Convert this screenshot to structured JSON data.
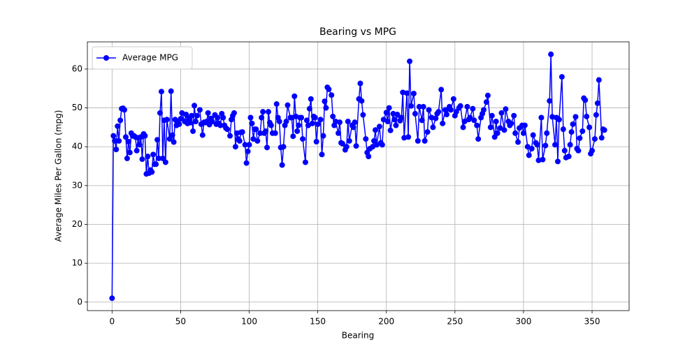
{
  "chart_data": {
    "type": "line",
    "title": "Bearing vs MPG",
    "x_label": "Bearing",
    "y_label": "Average Miles Per Gallon (mpg)",
    "x": [
      0,
      1,
      2,
      3,
      4,
      5,
      6,
      7,
      8,
      9,
      10,
      11,
      12,
      13,
      14,
      15,
      16,
      17,
      18,
      19,
      20,
      21,
      22,
      23,
      24,
      25,
      26,
      27,
      28,
      29,
      30,
      31,
      32,
      33,
      34,
      35,
      36,
      37,
      38,
      39,
      40,
      42,
      43,
      44,
      45,
      46,
      47,
      48,
      49,
      50,
      51,
      53,
      54,
      55,
      56,
      57,
      58,
      59,
      60,
      61,
      62,
      64,
      65,
      66,
      67,
      68,
      69,
      70,
      71,
      72,
      73,
      75,
      76,
      77,
      78,
      79,
      80,
      81,
      82,
      83,
      84,
      86,
      87,
      88,
      89,
      90,
      91,
      92,
      93,
      94,
      95,
      97,
      98,
      99,
      100,
      101,
      102,
      103,
      104,
      105,
      106,
      108,
      109,
      110,
      111,
      112,
      113,
      114,
      115,
      116,
      117,
      119,
      120,
      121,
      122,
      123,
      124,
      125,
      126,
      127,
      128,
      130,
      131,
      132,
      133,
      134,
      135,
      136,
      137,
      138,
      139,
      141,
      142,
      143,
      144,
      145,
      146,
      147,
      148,
      149,
      150,
      152,
      153,
      154,
      155,
      156,
      157,
      158,
      160,
      161,
      162,
      163,
      165,
      166,
      167,
      168,
      170,
      171,
      172,
      173,
      175,
      176,
      177,
      178,
      180,
      181,
      182,
      183,
      185,
      186,
      187,
      188,
      190,
      191,
      192,
      193,
      195,
      196,
      197,
      198,
      200,
      201,
      202,
      203,
      205,
      206,
      207,
      208,
      210,
      211,
      212,
      213,
      215,
      216,
      217,
      218,
      220,
      221,
      223,
      224,
      226,
      227,
      228,
      230,
      231,
      233,
      234,
      236,
      237,
      238,
      240,
      241,
      243,
      244,
      246,
      247,
      249,
      250,
      251,
      253,
      254,
      256,
      257,
      259,
      260,
      261,
      263,
      264,
      266,
      267,
      269,
      270,
      271,
      273,
      274,
      276,
      277,
      279,
      280,
      281,
      283,
      284,
      286,
      287,
      289,
      290,
      291,
      293,
      294,
      296,
      297,
      299,
      300,
      301,
      303,
      304,
      306,
      307,
      309,
      310,
      311,
      313,
      314,
      316,
      317,
      319,
      320,
      321,
      323,
      324,
      325,
      326,
      328,
      329,
      330,
      331,
      333,
      334,
      335,
      336,
      338,
      339,
      340,
      341,
      343,
      344,
      345,
      346,
      348,
      349,
      350,
      352,
      353,
      354,
      355,
      357,
      358,
      359
    ],
    "series": [
      {
        "name": "Average MPG",
        "color": "#0000ff",
        "values": [
          1,
          42.8,
          41.5,
          39.3,
          45.3,
          41.5,
          46.8,
          49.8,
          49.9,
          49.5,
          42.5,
          37,
          41.3,
          38.5,
          43.5,
          42.8,
          42.8,
          42.5,
          39,
          42.3,
          40.5,
          42.5,
          36.8,
          43.3,
          42.8,
          33,
          37.5,
          33.2,
          34,
          33.5,
          38,
          35.5,
          35.5,
          41.8,
          37,
          48.7,
          54.2,
          37,
          46.8,
          36,
          47,
          42,
          54.3,
          43,
          41.2,
          47,
          45.5,
          46.5,
          45.8,
          47.2,
          48.7,
          46.5,
          48.3,
          46,
          47.3,
          46.2,
          48,
          44,
          50.6,
          46.5,
          48,
          49.5,
          45.8,
          43,
          46.3,
          46.2,
          46.5,
          48.7,
          45.7,
          47.3,
          46.5,
          48.2,
          45.8,
          47.5,
          46,
          45.5,
          48.5,
          47.5,
          45.5,
          44.8,
          44.5,
          42.8,
          47,
          48,
          48.7,
          40,
          43.5,
          42,
          41.5,
          43.7,
          43.8,
          40.5,
          35.8,
          38.8,
          40.5,
          47.5,
          46,
          42,
          44.5,
          44.5,
          41.5,
          43.5,
          47.5,
          49,
          43.5,
          44,
          39.8,
          49,
          46.2,
          45.5,
          43.5,
          43.5,
          51,
          47.5,
          46.5,
          39.8,
          35.3,
          40,
          45.5,
          46.5,
          50.7,
          47.5,
          47.5,
          42.7,
          53,
          47.8,
          44,
          45.5,
          47.5,
          47.5,
          42,
          36,
          46.8,
          45.5,
          49.8,
          52.3,
          46,
          47.8,
          47.5,
          41.3,
          45.8,
          47,
          38,
          42.8,
          51.7,
          50,
          55.3,
          54.8,
          53.3,
          47.8,
          45.5,
          46.5,
          43.5,
          46.3,
          41,
          40.8,
          39.2,
          40,
          46.5,
          41.5,
          45.5,
          45,
          46.3,
          40.2,
          52.3,
          56.3,
          51.8,
          48.2,
          42,
          38.5,
          37.5,
          39.5,
          40,
          41.5,
          44.3,
          40.5,
          45.2,
          41,
          40.5,
          47,
          48.8,
          46.5,
          50,
          44.2,
          48.5,
          47,
          45.5,
          48.3,
          46.7,
          47.5,
          54,
          42.3,
          53.8,
          42.5,
          62,
          50.5,
          53.7,
          48.5,
          41.5,
          50.3,
          46.8,
          50.3,
          41.5,
          43.8,
          49.5,
          47.5,
          45,
          47.3,
          48.5,
          49,
          54.7,
          46,
          49.5,
          48.3,
          50.3,
          49.5,
          52.3,
          48,
          49,
          50,
          50.5,
          45,
          46.5,
          50.3,
          47,
          47.5,
          49.8,
          46.8,
          45.5,
          42,
          47.5,
          48.5,
          49.5,
          51.5,
          53.2,
          45,
          48,
          42.5,
          46.5,
          43.5,
          44.8,
          48.7,
          44.3,
          49.7,
          46.5,
          45.5,
          46,
          48,
          43.5,
          41.2,
          44.8,
          45.5,
          43.5,
          45.5,
          40,
          37.8,
          39.5,
          43,
          41,
          40.5,
          36.5,
          47.5,
          36.7,
          40.3,
          43.5,
          51.8,
          63.8,
          47.7,
          40.5,
          47.5,
          36.2,
          47,
          58,
          44.5,
          39,
          37.2,
          37.5,
          40.5,
          43.8,
          45.8,
          47.7,
          39.5,
          39,
          42.2,
          44,
          52.5,
          52,
          47.8,
          45,
          38.2,
          39,
          42,
          48.2,
          51.2,
          57.2,
          42.3,
          44.5,
          44.3
        ]
      }
    ],
    "xlim": [
      -18,
      377
    ],
    "ylim": [
      -2.2,
      67
    ],
    "xticks": [
      0,
      50,
      100,
      150,
      200,
      250,
      300,
      350
    ],
    "yticks": [
      0,
      10,
      20,
      30,
      40,
      50,
      60
    ],
    "grid": true,
    "legend": "upper left"
  }
}
